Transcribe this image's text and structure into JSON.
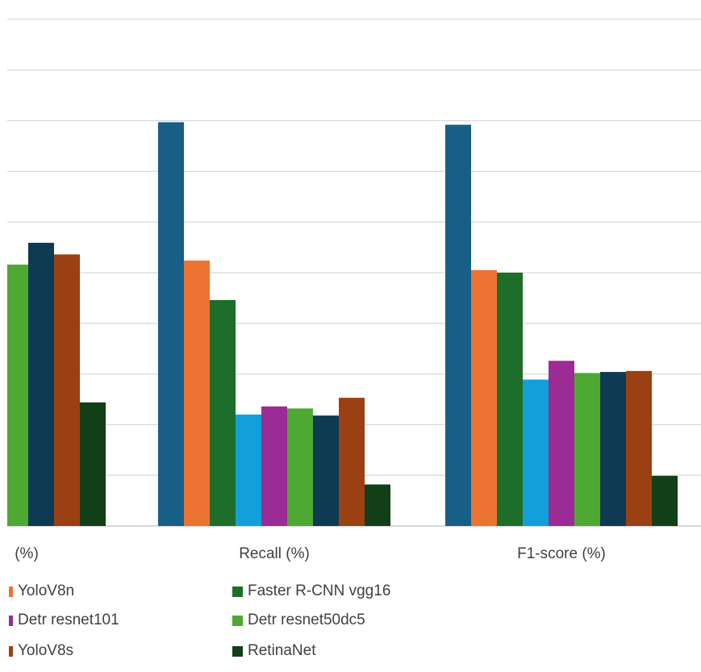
{
  "chart_data": {
    "type": "bar",
    "title": "",
    "xlabel": "",
    "ylabel": "",
    "categories": [
      "(%)",
      "Recall (%)",
      "F1-score (%)"
    ],
    "ylim": [
      0,
      100
    ],
    "gridlines": 10,
    "series": [
      {
        "name": "",
        "color": "#175f86",
        "values": [
          null,
          79.7,
          79.2
        ]
      },
      {
        "name": "YoloV8n",
        "color": "#ed7333",
        "values": [
          null,
          52.4,
          50.5
        ]
      },
      {
        "name": "Faster R-CNN vgg16",
        "color": "#1c6e2a",
        "values": [
          null,
          44.6,
          50.0
        ]
      },
      {
        "name": "",
        "color": "#12a0db",
        "values": [
          null,
          22.0,
          28.9
        ]
      },
      {
        "name": "Detr resnet101",
        "color": "#9b2b95",
        "values": [
          null,
          23.6,
          32.6
        ]
      },
      {
        "name": "Detr resnet50dc5",
        "color": "#4ea933",
        "values": [
          51.6,
          23.2,
          30.2
        ]
      },
      {
        "name": "",
        "color": "#0f3a54",
        "values": [
          55.9,
          21.8,
          30.4
        ]
      },
      {
        "name": "YoloV8s",
        "color": "#9b4012",
        "values": [
          53.6,
          25.3,
          30.6
        ]
      },
      {
        "name": "RetinaNet",
        "color": "#123f18",
        "values": [
          24.4,
          8.2,
          9.9
        ]
      }
    ]
  },
  "legend": [
    {
      "label": "YoloV8n",
      "color": "#ed7333"
    },
    {
      "label": "Faster R-CNN vgg16",
      "color": "#1c6e2a"
    },
    {
      "label": "Detr resnet101",
      "color": "#9b2b95"
    },
    {
      "label": "Detr resnet50dc5",
      "color": "#4ea933"
    },
    {
      "label": "YoloV8s",
      "color": "#9b4012"
    },
    {
      "label": "RetinaNet",
      "color": "#123f18"
    }
  ]
}
